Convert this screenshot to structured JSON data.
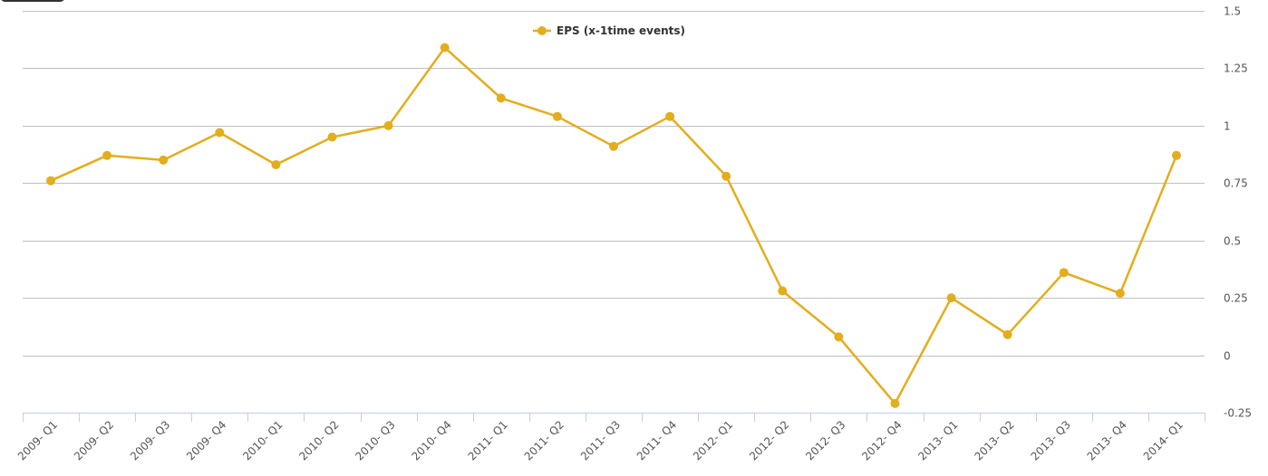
{
  "chart_data": {
    "type": "line",
    "title": "",
    "xlabel": "",
    "ylabel": "",
    "categories": [
      "2009- Q1",
      "2009- Q2",
      "2009- Q3",
      "2009- Q4",
      "2010- Q1",
      "2010- Q2",
      "2010- Q3",
      "2010- Q4",
      "2011- Q1",
      "2011- Q2",
      "2011- Q3",
      "2011- Q4",
      "2012- Q1",
      "2012- Q2",
      "2012- Q3",
      "2012- Q4",
      "2013- Q1",
      "2013- Q2",
      "2013- Q3",
      "2013- Q4",
      "2014- Q1"
    ],
    "series": [
      {
        "name": "EPS (x-1time events)",
        "color": "#e3ad1c",
        "values": [
          0.76,
          0.87,
          0.85,
          0.97,
          0.83,
          0.95,
          1.0,
          1.34,
          1.12,
          1.04,
          0.91,
          1.04,
          0.78,
          0.28,
          0.08,
          -0.21,
          0.25,
          0.09,
          0.36,
          0.27,
          0.87
        ]
      }
    ],
    "y_ticks": [
      "1.5",
      "1.25",
      "1",
      "0.75",
      "0.5",
      "0.25",
      "0",
      "-0.25"
    ],
    "ylim": [
      -0.25,
      1.5
    ],
    "y_axis_side": "right",
    "grid": true,
    "legend_position": "top-center"
  }
}
